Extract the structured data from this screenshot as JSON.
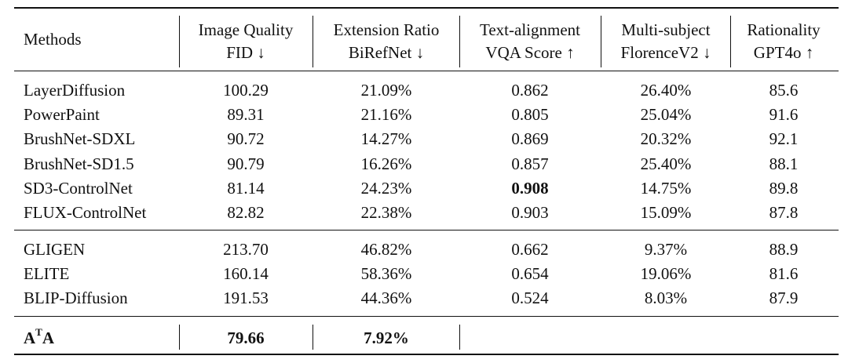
{
  "table": {
    "columns": [
      {
        "title": "Methods"
      },
      {
        "title": "Image Quality",
        "metric": "FID ↓"
      },
      {
        "title": "Extension Ratio",
        "metric": "BiRefNet ↓"
      },
      {
        "title": "Text-alignment",
        "metric": "VQA Score ↑"
      },
      {
        "title": "Multi-subject",
        "metric": "FlorenceV2 ↓"
      },
      {
        "title": "Rationality",
        "metric": "GPT4o ↑"
      }
    ],
    "groups": [
      [
        [
          "LayerDiffusion",
          "100.29",
          "21.09%",
          "0.862",
          "26.40%",
          "85.6"
        ],
        [
          "PowerPaint",
          "89.31",
          "21.16%",
          "0.805",
          "25.04%",
          "91.6"
        ],
        [
          "BrushNet-SDXL",
          "90.72",
          "14.27%",
          "0.869",
          "20.32%",
          "92.1"
        ],
        [
          "BrushNet-SD1.5",
          "90.79",
          "16.26%",
          "0.857",
          "25.40%",
          "88.1"
        ],
        [
          "SD3-ControlNet",
          "81.14",
          "24.23%",
          "0.908",
          "14.75%",
          "89.8"
        ],
        [
          "FLUX-ControlNet",
          "82.82",
          "22.38%",
          "0.903",
          "15.09%",
          "87.8"
        ]
      ],
      [
        [
          "GLIGEN",
          "213.70",
          "46.82%",
          "0.662",
          "9.37%",
          "88.9"
        ],
        [
          "ELITE",
          "160.14",
          "58.36%",
          "0.654",
          "19.06%",
          "81.6"
        ],
        [
          "BLIP-Diffusion",
          "191.53",
          "44.36%",
          "0.524",
          "8.03%",
          "87.9"
        ]
      ]
    ],
    "bold_cells": [
      {
        "group": 0,
        "row": 4,
        "col": 3
      }
    ],
    "ours": {
      "method": [
        "A",
        "T",
        "A"
      ],
      "values": [
        "79.66",
        "7.92%"
      ]
    }
  }
}
